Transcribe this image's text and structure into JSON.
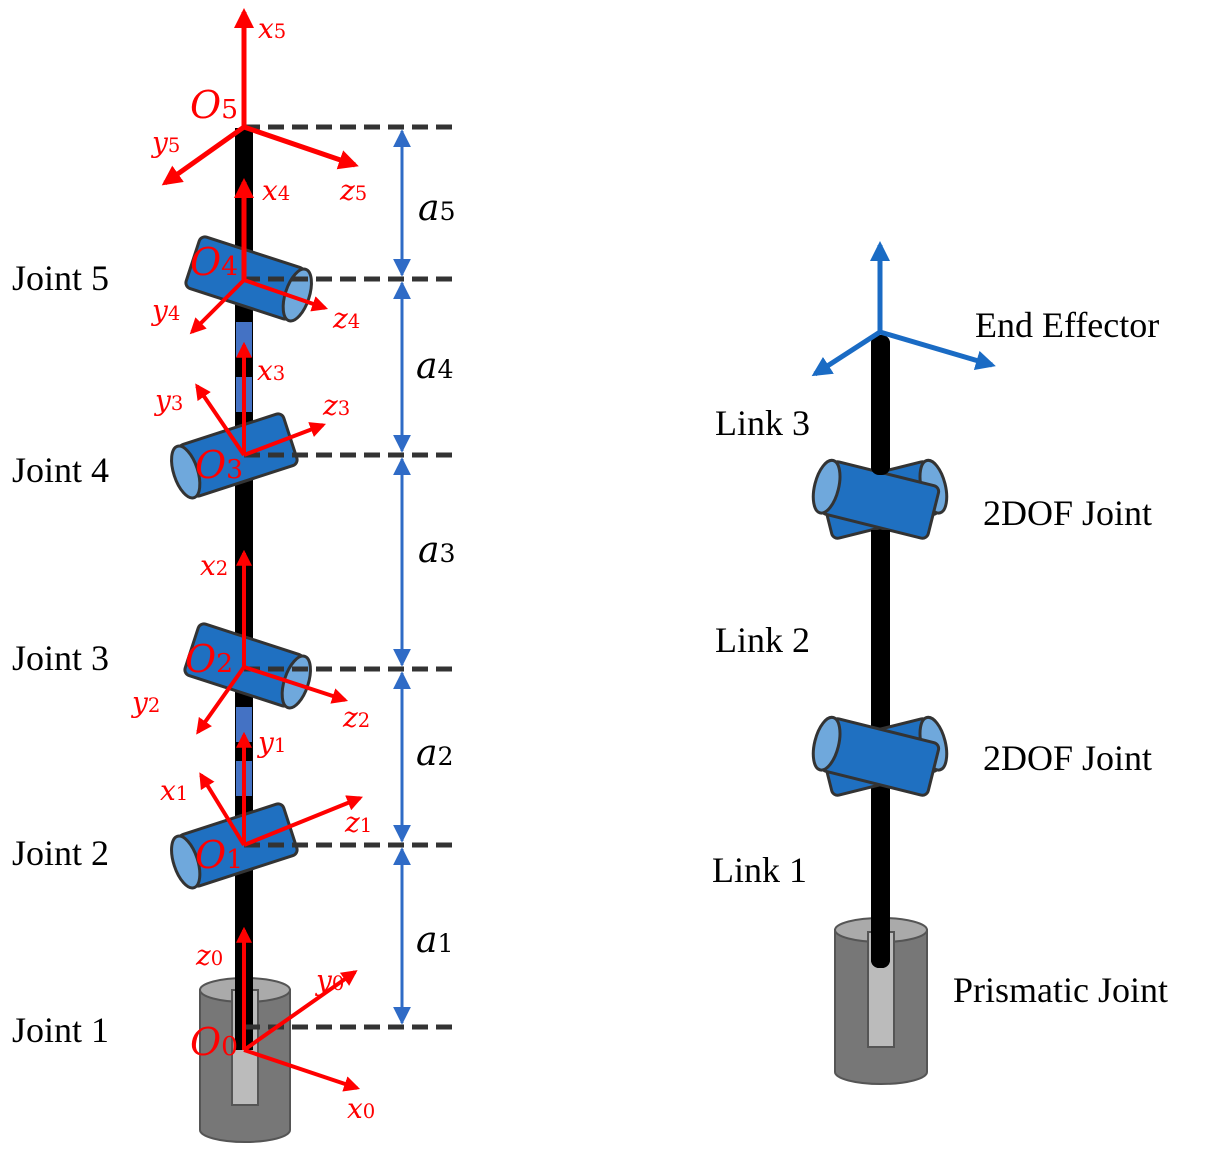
{
  "colors": {
    "frame": "#ff0000",
    "dimension": "#2f6bc6",
    "joint": "#1f70c1",
    "joint_end": "#6fa8dc",
    "link": "#000000",
    "base": "#777777",
    "end_effector_frame": "#1a6bc4"
  },
  "left": {
    "joints": [
      "Joint 5",
      "Joint 4",
      "Joint 3",
      "Joint 2",
      "Joint 1"
    ],
    "origins": [
      {
        "b": "O",
        "s": "5"
      },
      {
        "b": "O",
        "s": "4"
      },
      {
        "b": "O",
        "s": "3"
      },
      {
        "b": "O",
        "s": "2"
      },
      {
        "b": "O",
        "s": "1"
      },
      {
        "b": "O",
        "s": "0"
      }
    ],
    "axes": {
      "x5": {
        "b": "x",
        "s": "5"
      },
      "y5": {
        "b": "y",
        "s": "5"
      },
      "z5": {
        "b": "z",
        "s": "5"
      },
      "x4": {
        "b": "x",
        "s": "4"
      },
      "y4": {
        "b": "y",
        "s": "4"
      },
      "z4": {
        "b": "z",
        "s": "4"
      },
      "x3": {
        "b": "x",
        "s": "3"
      },
      "y3": {
        "b": "y",
        "s": "3"
      },
      "z3": {
        "b": "z",
        "s": "3"
      },
      "x2": {
        "b": "x",
        "s": "2"
      },
      "y2": {
        "b": "y",
        "s": "2"
      },
      "z2": {
        "b": "z",
        "s": "2"
      },
      "x1": {
        "b": "x",
        "s": "1"
      },
      "y1": {
        "b": "y",
        "s": "1"
      },
      "z1": {
        "b": "z",
        "s": "1"
      },
      "x0": {
        "b": "x",
        "s": "0"
      },
      "y0": {
        "b": "y",
        "s": "0"
      },
      "z0": {
        "b": "z",
        "s": "0"
      }
    },
    "dimensions": [
      {
        "b": "a",
        "s": "5"
      },
      {
        "b": "a",
        "s": "4"
      },
      {
        "b": "a",
        "s": "3"
      },
      {
        "b": "a",
        "s": "2"
      },
      {
        "b": "a",
        "s": "1"
      }
    ]
  },
  "right": {
    "end_effector": "End Effector",
    "link3": "Link 3",
    "link2": "Link 2",
    "link1": "Link 1",
    "joint_upper": "2DOF Joint",
    "joint_lower": "2DOF Joint",
    "prismatic": "Prismatic Joint"
  }
}
